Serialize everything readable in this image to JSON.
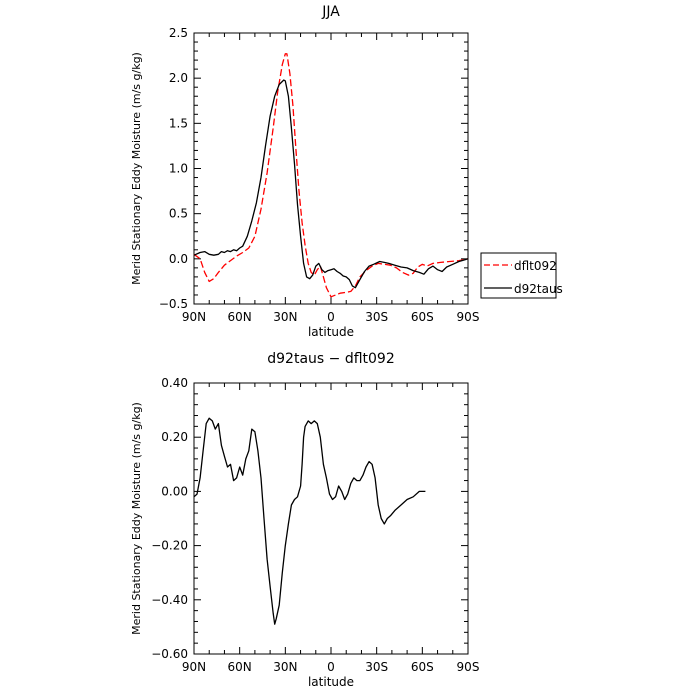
{
  "chart_data": [
    {
      "type": "line",
      "title": "JJA",
      "xlabel": "latitude",
      "ylabel": "Merid Stationary Eddy Moisture (m/s g/kg)",
      "xlim": [
        90,
        -90
      ],
      "ylim": [
        -0.5,
        2.5
      ],
      "x_ticks": [
        {
          "value": 90,
          "label": "90N"
        },
        {
          "value": 60,
          "label": "60N"
        },
        {
          "value": 30,
          "label": "30N"
        },
        {
          "value": 0,
          "label": "0"
        },
        {
          "value": -30,
          "label": "30S"
        },
        {
          "value": -60,
          "label": "60S"
        },
        {
          "value": -90,
          "label": "90S"
        }
      ],
      "y_ticks": [
        {
          "value": 2.5,
          "label": "2.5"
        },
        {
          "value": 2.0,
          "label": "2.0"
        },
        {
          "value": 1.5,
          "label": "1.5"
        },
        {
          "value": 1.0,
          "label": "1.0"
        },
        {
          "value": 0.5,
          "label": "0.5"
        },
        {
          "value": 0.0,
          "label": "0.0"
        },
        {
          "value": -0.5,
          "label": "−0.5"
        }
      ],
      "legend": "right, outside",
      "series": [
        {
          "name": "dflt092",
          "color": "#ff0000",
          "dash": "dashed",
          "points": [
            [
              90,
              0.05
            ],
            [
              86,
              0.0
            ],
            [
              83,
              -0.15
            ],
            [
              80,
              -0.25
            ],
            [
              77,
              -0.22
            ],
            [
              74,
              -0.15
            ],
            [
              70,
              -0.07
            ],
            [
              66,
              -0.02
            ],
            [
              62,
              0.03
            ],
            [
              58,
              0.07
            ],
            [
              54,
              0.12
            ],
            [
              50,
              0.25
            ],
            [
              46,
              0.55
            ],
            [
              42,
              0.95
            ],
            [
              38,
              1.45
            ],
            [
              35,
              1.85
            ],
            [
              32,
              2.15
            ],
            [
              30,
              2.27
            ],
            [
              29,
              2.27
            ],
            [
              27,
              2.05
            ],
            [
              25,
              1.7
            ],
            [
              23,
              1.2
            ],
            [
              21,
              0.75
            ],
            [
              19,
              0.4
            ],
            [
              17,
              0.15
            ],
            [
              15,
              -0.05
            ],
            [
              13,
              -0.15
            ],
            [
              11,
              -0.18
            ],
            [
              9,
              -0.12
            ],
            [
              7,
              -0.08
            ],
            [
              5,
              -0.2
            ],
            [
              3,
              -0.32
            ],
            [
              0,
              -0.42
            ],
            [
              -3,
              -0.4
            ],
            [
              -6,
              -0.38
            ],
            [
              -10,
              -0.37
            ],
            [
              -13,
              -0.36
            ],
            [
              -16,
              -0.3
            ],
            [
              -19,
              -0.2
            ],
            [
              -23,
              -0.13
            ],
            [
              -27,
              -0.08
            ],
            [
              -31,
              -0.05
            ],
            [
              -35,
              -0.06
            ],
            [
              -39,
              -0.07
            ],
            [
              -43,
              -0.1
            ],
            [
              -47,
              -0.15
            ],
            [
              -51,
              -0.18
            ],
            [
              -54,
              -0.16
            ],
            [
              -57,
              -0.09
            ],
            [
              -60,
              -0.06
            ],
            [
              -63,
              -0.08
            ],
            [
              -67,
              -0.05
            ],
            [
              -72,
              -0.04
            ],
            [
              -78,
              -0.03
            ],
            [
              -84,
              -0.02
            ],
            [
              -90,
              0.0
            ]
          ]
        },
        {
          "name": "d92taus",
          "color": "#000000",
          "dash": "solid",
          "points": [
            [
              90,
              0.04
            ],
            [
              86,
              0.07
            ],
            [
              83,
              0.08
            ],
            [
              80,
              0.05
            ],
            [
              77,
              0.04
            ],
            [
              74,
              0.05
            ],
            [
              72,
              0.08
            ],
            [
              70,
              0.07
            ],
            [
              68,
              0.09
            ],
            [
              66,
              0.08
            ],
            [
              64,
              0.1
            ],
            [
              62,
              0.09
            ],
            [
              60,
              0.12
            ],
            [
              58,
              0.14
            ],
            [
              55,
              0.25
            ],
            [
              52,
              0.42
            ],
            [
              49,
              0.62
            ],
            [
              46,
              0.9
            ],
            [
              43,
              1.25
            ],
            [
              40,
              1.58
            ],
            [
              37,
              1.8
            ],
            [
              34,
              1.93
            ],
            [
              31,
              1.98
            ],
            [
              30,
              1.97
            ],
            [
              28,
              1.8
            ],
            [
              26,
              1.45
            ],
            [
              24,
              1.05
            ],
            [
              22,
              0.6
            ],
            [
              20,
              0.25
            ],
            [
              18,
              -0.05
            ],
            [
              16,
              -0.2
            ],
            [
              14,
              -0.22
            ],
            [
              12,
              -0.18
            ],
            [
              10,
              -0.08
            ],
            [
              8,
              -0.05
            ],
            [
              6,
              -0.12
            ],
            [
              4,
              -0.15
            ],
            [
              2,
              -0.13
            ],
            [
              0,
              -0.12
            ],
            [
              -2,
              -0.11
            ],
            [
              -4,
              -0.14
            ],
            [
              -6,
              -0.16
            ],
            [
              -8,
              -0.19
            ],
            [
              -10,
              -0.2
            ],
            [
              -12,
              -0.23
            ],
            [
              -14,
              -0.3
            ],
            [
              -16,
              -0.32
            ],
            [
              -19,
              -0.23
            ],
            [
              -22,
              -0.14
            ],
            [
              -25,
              -0.08
            ],
            [
              -28,
              -0.06
            ],
            [
              -32,
              -0.03
            ],
            [
              -35,
              -0.04
            ],
            [
              -38,
              -0.05
            ],
            [
              -42,
              -0.07
            ],
            [
              -46,
              -0.09
            ],
            [
              -50,
              -0.1
            ],
            [
              -54,
              -0.13
            ],
            [
              -58,
              -0.15
            ],
            [
              -61,
              -0.17
            ],
            [
              -64,
              -0.11
            ],
            [
              -67,
              -0.08
            ],
            [
              -70,
              -0.12
            ],
            [
              -73,
              -0.14
            ],
            [
              -76,
              -0.09
            ],
            [
              -80,
              -0.06
            ],
            [
              -84,
              -0.03
            ],
            [
              -88,
              -0.01
            ],
            [
              -90,
              0.0
            ]
          ]
        }
      ]
    },
    {
      "type": "line",
      "title": "d92taus − dflt092",
      "xlabel": "latitude",
      "ylabel": "Merid Stationary Eddy Moisture (m/s g/kg)",
      "xlim": [
        90,
        -90
      ],
      "ylim": [
        -0.6,
        0.4
      ],
      "x_ticks": [
        {
          "value": 90,
          "label": "90N"
        },
        {
          "value": 60,
          "label": "60N"
        },
        {
          "value": 30,
          "label": "30N"
        },
        {
          "value": 0,
          "label": "0"
        },
        {
          "value": -30,
          "label": "30S"
        },
        {
          "value": -60,
          "label": "60S"
        },
        {
          "value": -90,
          "label": "90S"
        }
      ],
      "y_ticks": [
        {
          "value": 0.4,
          "label": "0.40"
        },
        {
          "value": 0.2,
          "label": "0.20"
        },
        {
          "value": 0.0,
          "label": "0.00"
        },
        {
          "value": -0.2,
          "label": "−0.20"
        },
        {
          "value": -0.4,
          "label": "−0.40"
        },
        {
          "value": -0.6,
          "label": "−0.60"
        }
      ],
      "series": [
        {
          "color": "#000000",
          "dash": "solid",
          "points": [
            [
              90,
              -0.02
            ],
            [
              88,
              -0.01
            ],
            [
              86,
              0.05
            ],
            [
              84,
              0.15
            ],
            [
              82,
              0.25
            ],
            [
              80,
              0.27
            ],
            [
              78,
              0.26
            ],
            [
              76,
              0.23
            ],
            [
              74,
              0.25
            ],
            [
              72,
              0.17
            ],
            [
              70,
              0.13
            ],
            [
              68,
              0.09
            ],
            [
              66,
              0.1
            ],
            [
              64,
              0.04
            ],
            [
              62,
              0.05
            ],
            [
              60,
              0.09
            ],
            [
              58,
              0.06
            ],
            [
              56,
              0.12
            ],
            [
              54,
              0.15
            ],
            [
              52,
              0.23
            ],
            [
              50,
              0.22
            ],
            [
              48,
              0.15
            ],
            [
              46,
              0.05
            ],
            [
              44,
              -0.1
            ],
            [
              42,
              -0.25
            ],
            [
              40,
              -0.35
            ],
            [
              38,
              -0.45
            ],
            [
              37,
              -0.49
            ],
            [
              36,
              -0.47
            ],
            [
              34,
              -0.42
            ],
            [
              32,
              -0.3
            ],
            [
              30,
              -0.2
            ],
            [
              28,
              -0.12
            ],
            [
              26,
              -0.05
            ],
            [
              24,
              -0.03
            ],
            [
              22,
              -0.02
            ],
            [
              20,
              0.02
            ],
            [
              19,
              0.1
            ],
            [
              18,
              0.2
            ],
            [
              17,
              0.24
            ],
            [
              15,
              0.26
            ],
            [
              13,
              0.25
            ],
            [
              11,
              0.26
            ],
            [
              9,
              0.25
            ],
            [
              7,
              0.2
            ],
            [
              5,
              0.1
            ],
            [
              3,
              0.05
            ],
            [
              1,
              -0.01
            ],
            [
              -1,
              -0.03
            ],
            [
              -3,
              -0.02
            ],
            [
              -5,
              0.02
            ],
            [
              -7,
              0.0
            ],
            [
              -9,
              -0.03
            ],
            [
              -11,
              -0.01
            ],
            [
              -13,
              0.03
            ],
            [
              -15,
              0.05
            ],
            [
              -17,
              0.04
            ],
            [
              -19,
              0.04
            ],
            [
              -21,
              0.06
            ],
            [
              -23,
              0.09
            ],
            [
              -25,
              0.11
            ],
            [
              -27,
              0.1
            ],
            [
              -29,
              0.05
            ],
            [
              -31,
              -0.05
            ],
            [
              -33,
              -0.1
            ],
            [
              -35,
              -0.12
            ],
            [
              -37,
              -0.1
            ],
            [
              -39,
              -0.09
            ],
            [
              -42,
              -0.07
            ],
            [
              -46,
              -0.05
            ],
            [
              -50,
              -0.03
            ],
            [
              -54,
              -0.02
            ],
            [
              -58,
              0.0
            ],
            [
              -62,
              0.0
            ]
          ]
        }
      ]
    }
  ],
  "legend_items": [
    {
      "label": "dflt092",
      "color": "#ff0000",
      "dash": "dashed"
    },
    {
      "label": "d92taus",
      "color": "#000000",
      "dash": "solid"
    }
  ]
}
